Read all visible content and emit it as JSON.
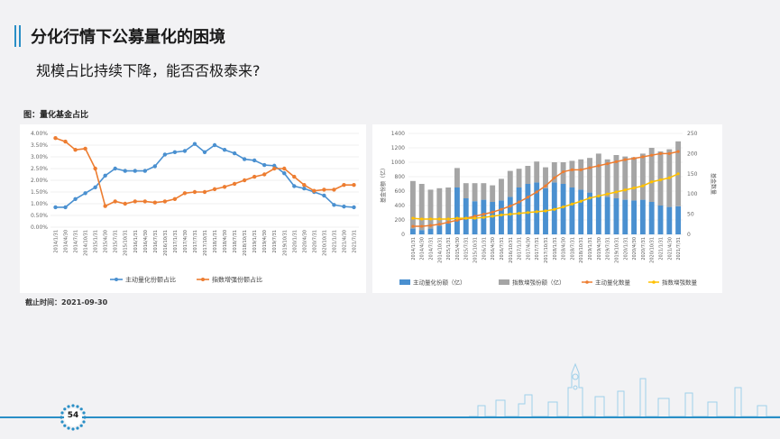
{
  "header": {
    "title": "分化行情下公募量化的困境",
    "subtitle": "规模占比持续下降，能否否极泰来?"
  },
  "figure_label": "图：量化基金占比",
  "note": "截止时间：2021-09-30",
  "page_number": "54",
  "colors": {
    "accent": "#2a8fc6",
    "blue": "#4a90d0",
    "orange": "#ed7d31",
    "gray": "#a5a5a5",
    "yellow": "#ffc000"
  },
  "chart_data": [
    {
      "type": "line",
      "categories": [
        "2014/1/31",
        "2014/4/30",
        "2014/7/31",
        "2014/10/31",
        "2015/1/31",
        "2015/4/30",
        "2015/7/31",
        "2015/10/31",
        "2016/1/31",
        "2016/4/30",
        "2016/7/31",
        "2016/10/31",
        "2017/1/31",
        "2017/4/30",
        "2017/7/31",
        "2017/10/31",
        "2018/1/31",
        "2018/4/30",
        "2018/7/31",
        "2018/10/31",
        "2019/1/31",
        "2019/4/30",
        "2019/7/31",
        "2019/10/31",
        "2020/1/31",
        "2020/4/30",
        "2020/7/31",
        "2020/10/31",
        "2021/1/31",
        "2021/4/30",
        "2021/7/31"
      ],
      "tick_labels": [
        "2014/1/31",
        "2014/4/30",
        "2014/7/31",
        "2014/10/31",
        "2015/1/31",
        "2015/4/30",
        "2015/7/31",
        "2015/10/31",
        "2016/1/31",
        "2016/4/30",
        "2016/7/31",
        "2016/10/31",
        "2017/1/31",
        "2017/4/30",
        "2017/7/31",
        "2017/10/31",
        "2018/1/31",
        "2018/4/30",
        "2018/7/31",
        "2018/10/31",
        "2019/1/31",
        "2019/4/30",
        "2019/7/31",
        "2019/10/31",
        "2020/1/31",
        "2020/4/30",
        "2020/7/31",
        "2020/10/31",
        "2021/1/31",
        "2021/4/30",
        "2021/7/31"
      ],
      "ylim": [
        0,
        4
      ],
      "yticks": [
        "0.00%",
        "0.50%",
        "1.00%",
        "1.50%",
        "2.00%",
        "2.50%",
        "3.00%",
        "3.50%",
        "4.00%"
      ],
      "series": [
        {
          "name": "主动量化份额占比",
          "color": "#4a90d0",
          "values": [
            0.85,
            0.85,
            1.2,
            1.45,
            1.7,
            2.2,
            2.5,
            2.4,
            2.4,
            2.4,
            2.6,
            3.1,
            3.2,
            3.25,
            3.55,
            3.2,
            3.5,
            3.3,
            3.15,
            2.9,
            2.85,
            2.65,
            2.62,
            2.3,
            1.75,
            1.65,
            1.5,
            1.35,
            0.95,
            0.88,
            0.85
          ]
        },
        {
          "name": "指数增强份额占比",
          "color": "#ed7d31",
          "values": [
            3.8,
            3.65,
            3.3,
            3.35,
            2.5,
            0.9,
            1.1,
            1.0,
            1.1,
            1.1,
            1.05,
            1.1,
            1.2,
            1.45,
            1.5,
            1.5,
            1.62,
            1.72,
            1.85,
            2.0,
            2.15,
            2.25,
            2.5,
            2.5,
            2.15,
            1.8,
            1.55,
            1.6,
            1.6,
            1.8,
            1.8
          ]
        }
      ]
    },
    {
      "type": "bar",
      "categories": [
        "2014/1/31",
        "2014/4/30",
        "2014/7/31",
        "2014/10/31",
        "2015/1/31",
        "2015/4/30",
        "2015/7/31",
        "2015/10/31",
        "2016/1/31",
        "2016/4/30",
        "2016/7/31",
        "2016/10/31",
        "2017/1/31",
        "2017/4/30",
        "2017/7/31",
        "2017/10/31",
        "2018/1/31",
        "2018/4/30",
        "2018/7/31",
        "2018/10/31",
        "2019/1/31",
        "2019/4/30",
        "2019/7/31",
        "2019/10/31",
        "2020/1/31",
        "2020/4/30",
        "2020/7/31",
        "2020/10/31",
        "2021/1/31",
        "2021/4/30",
        "2021/7/31"
      ],
      "tick_labels": [
        "2014/1/31",
        "2014/4/30",
        "2014/7/31",
        "2014/10/31",
        "2015/1/31",
        "2015/4/30",
        "2015/7/31",
        "2015/10/31",
        "2016/1/31",
        "2016/4/30",
        "2016/7/31",
        "2016/10/31",
        "2017/1/31",
        "2017/4/30",
        "2017/7/31",
        "2017/10/31",
        "2018/1/31",
        "2018/4/30",
        "2018/7/31",
        "2018/10/31",
        "2019/1/31",
        "2019/4/30",
        "2019/7/31",
        "2019/10/31",
        "2020/1/31",
        "2020/4/30",
        "2020/7/31",
        "2020/10/31",
        "2021/1/31",
        "2021/4/30",
        "2021/7/31"
      ],
      "ylabel_left": "基金份额（亿）",
      "ylabel_right": "基金数量",
      "ylim_left": [
        0,
        1400
      ],
      "ylim_right": [
        0,
        250
      ],
      "yticks_left": [
        "0",
        "200",
        "400",
        "600",
        "800",
        "1000",
        "1200",
        "1400"
      ],
      "yticks_right": [
        "0",
        "50",
        "100",
        "150",
        "200",
        "250"
      ],
      "stacked": true,
      "series": [
        {
          "name": "主动量化份额（亿）",
          "color": "#4a90d0",
          "axis": "left",
          "values": [
            80,
            60,
            80,
            120,
            150,
            650,
            500,
            460,
            480,
            450,
            470,
            520,
            650,
            700,
            720,
            640,
            720,
            700,
            650,
            620,
            580,
            540,
            520,
            500,
            480,
            470,
            480,
            450,
            400,
            380,
            390
          ]
        },
        {
          "name": "指数增强份额（亿）",
          "color": "#a5a5a5",
          "axis": "left",
          "values": [
            660,
            640,
            540,
            520,
            500,
            270,
            210,
            250,
            230,
            230,
            300,
            360,
            260,
            250,
            290,
            290,
            280,
            300,
            370,
            420,
            480,
            580,
            520,
            600,
            600,
            600,
            640,
            750,
            750,
            800,
            900
          ]
        },
        {
          "name": "主动量化数量",
          "color": "#ed7d31",
          "axis": "right",
          "render": "line",
          "values": [
            20,
            20,
            22,
            25,
            30,
            35,
            40,
            45,
            50,
            55,
            62,
            70,
            80,
            92,
            105,
            120,
            140,
            155,
            160,
            160,
            165,
            170,
            175,
            180,
            185,
            188,
            192,
            196,
            200,
            200,
            205
          ]
        },
        {
          "name": "指数增强数量",
          "color": "#ffc000",
          "axis": "right",
          "render": "line",
          "values": [
            40,
            38,
            38,
            38,
            38,
            40,
            40,
            40,
            42,
            45,
            48,
            50,
            52,
            54,
            56,
            58,
            62,
            68,
            75,
            82,
            90,
            95,
            100,
            105,
            110,
            115,
            120,
            130,
            135,
            140,
            150
          ]
        }
      ]
    }
  ]
}
